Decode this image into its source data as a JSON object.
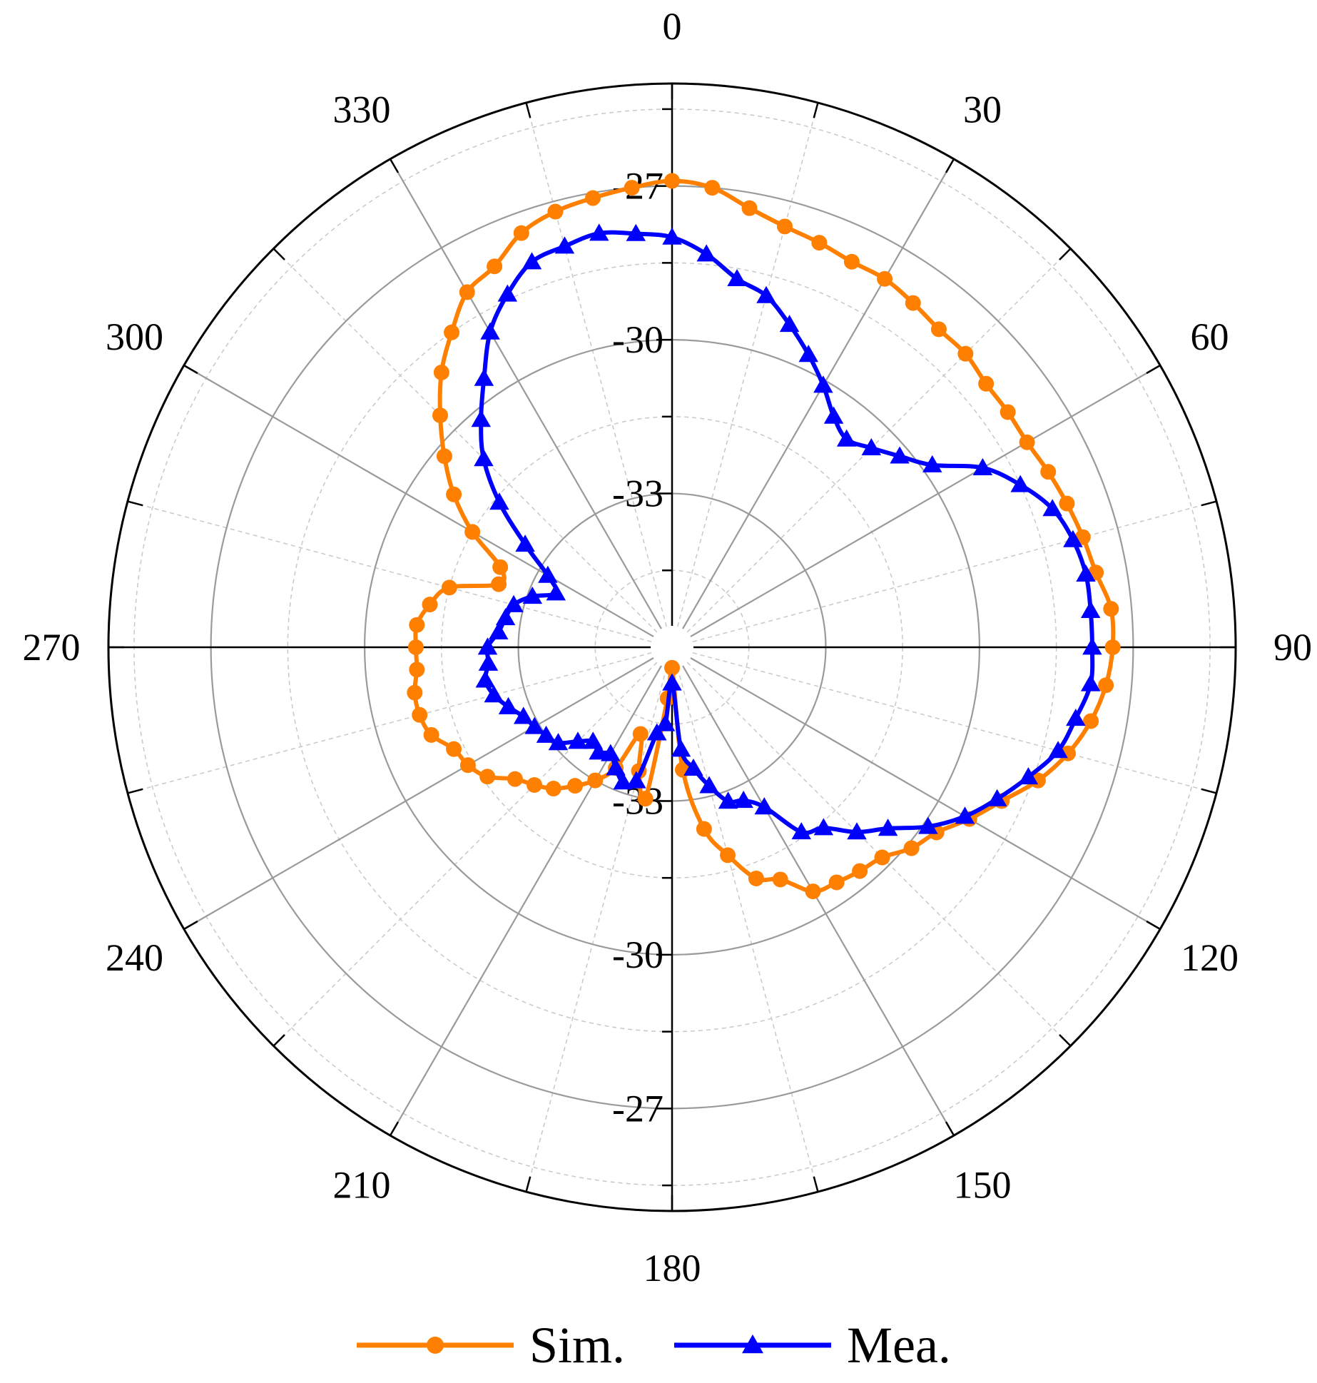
{
  "chart_data": {
    "type": "polar-line",
    "angle_direction": "clockwise",
    "angle_zero": "top",
    "angle_ticks": [
      0,
      30,
      60,
      90,
      120,
      150,
      180,
      210,
      240,
      270,
      300,
      330
    ],
    "angle_tick_labels": [
      "0",
      "30",
      "60",
      "90",
      "120",
      "150",
      "180",
      "210",
      "240",
      "270",
      "300",
      "330"
    ],
    "radial_axis": {
      "min": -36,
      "max": -25,
      "major_ticks": [
        -33,
        -30,
        -27
      ],
      "minor_ticks": [
        -34.5,
        -31.5,
        -28.5,
        -25.5
      ],
      "upper_tick_labels": [
        "-33",
        "-30",
        "-27"
      ],
      "lower_tick_labels": [
        "-33",
        "-30",
        "-27"
      ]
    },
    "grid": true,
    "legend_position": "bottom",
    "series": [
      {
        "name": "Sim.",
        "color": "#ff8000",
        "marker": "circle",
        "angles": [
          0,
          5,
          10,
          15,
          20,
          25,
          30,
          35,
          40,
          45,
          50,
          55,
          60,
          65,
          70,
          75,
          80,
          85,
          90,
          95,
          100,
          105,
          110,
          115,
          120,
          125,
          130,
          135,
          140,
          145,
          150,
          155,
          160,
          165,
          170,
          175,
          180,
          185,
          190,
          195,
          200,
          205,
          210,
          215,
          220,
          225,
          230,
          235,
          240,
          245,
          250,
          255,
          260,
          265,
          270,
          275,
          280,
          285,
          290,
          295,
          300,
          305,
          310,
          315,
          320,
          325,
          330,
          335,
          340,
          345,
          350,
          355
        ],
        "values": [
          -26.9,
          -27.0,
          -27.3,
          -27.5,
          -27.6,
          -27.7,
          -27.7,
          -27.8,
          -27.9,
          -27.9,
          -28.0,
          -28.0,
          -28.0,
          -27.9,
          -27.8,
          -27.7,
          -27.6,
          -27.4,
          -27.4,
          -27.5,
          -27.7,
          -28.0,
          -28.4,
          -28.9,
          -29.3,
          -29.7,
          -29.9,
          -30.2,
          -30.3,
          -30.4,
          -30.5,
          -31.0,
          -31.2,
          -31.8,
          -32.4,
          -33.6,
          -35.6,
          -35.0,
          -33.0,
          -33.5,
          -34.2,
          -33.4,
          -33.0,
          -32.7,
          -32.4,
          -32.2,
          -32.0,
          -31.6,
          -31.4,
          -31.3,
          -31.0,
          -30.9,
          -30.9,
          -31.0,
          -31.0,
          -31.0,
          -31.2,
          -31.5,
          -32.4,
          -32.3,
          -31.5,
          -30.8,
          -30.2,
          -29.6,
          -29.0,
          -28.5,
          -28.0,
          -27.8,
          -27.4,
          -27.2,
          -27.1,
          -27.0
        ]
      },
      {
        "name": "Mea.",
        "color": "#0000ff",
        "marker": "triangle",
        "angles": [
          0,
          5,
          10,
          15,
          20,
          25,
          30,
          35,
          40,
          45,
          50,
          55,
          60,
          65,
          70,
          75,
          80,
          85,
          90,
          95,
          100,
          105,
          110,
          115,
          120,
          125,
          130,
          135,
          140,
          145,
          150,
          155,
          160,
          165,
          170,
          175,
          180,
          185,
          190,
          195,
          200,
          205,
          210,
          215,
          220,
          225,
          230,
          235,
          240,
          245,
          250,
          255,
          260,
          265,
          270,
          275,
          280,
          285,
          290,
          295,
          300,
          305,
          310,
          315,
          320,
          325,
          330,
          335,
          340,
          345,
          350,
          355
        ],
        "values": [
          -28.0,
          -28.3,
          -28.7,
          -28.9,
          -29.3,
          -29.7,
          -30.1,
          -30.5,
          -30.7,
          -30.5,
          -30.2,
          -29.8,
          -29.0,
          -28.5,
          -28.1,
          -27.9,
          -27.8,
          -27.8,
          -27.8,
          -27.8,
          -28.0,
          -28.2,
          -28.6,
          -29.0,
          -29.4,
          -29.9,
          -30.5,
          -30.9,
          -31.4,
          -31.6,
          -32.4,
          -32.7,
          -32.8,
          -33.2,
          -33.6,
          -34.0,
          -35.3,
          -34.5,
          -34.3,
          -33.3,
          -33.2,
          -33.4,
          -33.6,
          -33.5,
          -33.6,
          -33.4,
          -33.1,
          -33.0,
          -32.9,
          -32.8,
          -32.6,
          -32.4,
          -32.3,
          -32.4,
          -32.4,
          -32.6,
          -32.7,
          -32.8,
          -33.1,
          -33.5,
          -33.2,
          -32.5,
          -31.6,
          -30.8,
          -30.2,
          -29.6,
          -28.9,
          -28.4,
          -28.0,
          -27.9,
          -27.8,
          -27.9
        ]
      }
    ]
  }
}
